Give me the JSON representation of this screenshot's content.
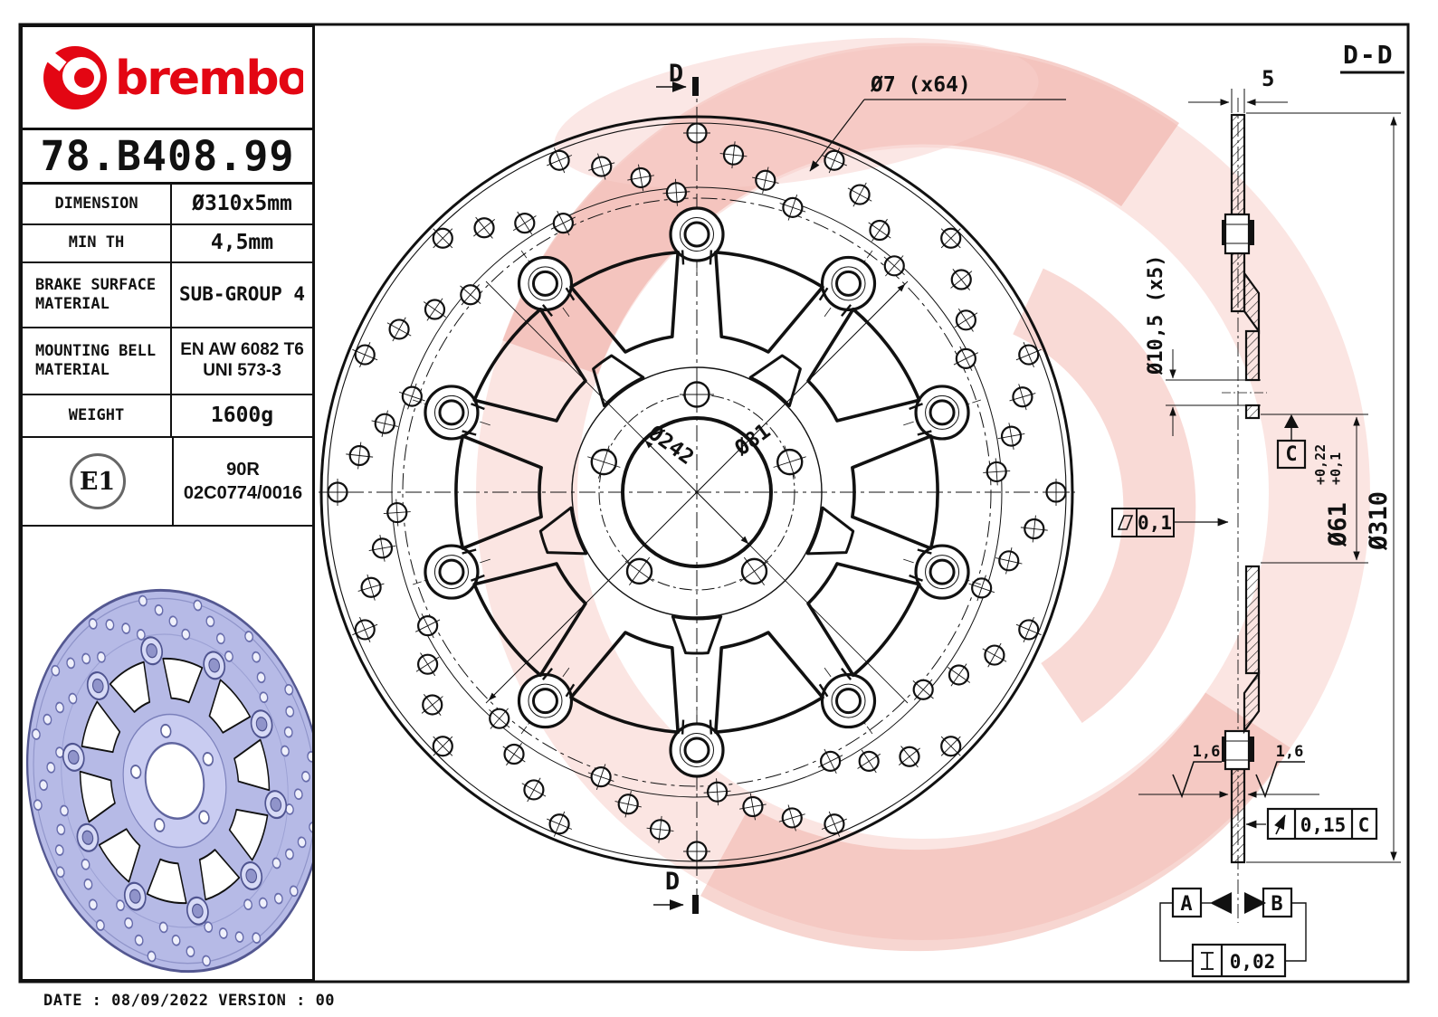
{
  "header": {
    "brand": "brembo",
    "part_number": "78.B408.99"
  },
  "spec_table": {
    "rows": [
      {
        "label": "DIMENSION",
        "value": "Ø310x5mm"
      },
      {
        "label": "MIN TH",
        "value": "4,5mm"
      },
      {
        "label": "BRAKE SURFACE",
        "label2": "MATERIAL",
        "value": "SUB-GROUP 4"
      },
      {
        "label": "MOUNTING BELL",
        "label2": "MATERIAL",
        "value": "EN AW 6082 T6",
        "value2": "UNI 573-3"
      },
      {
        "label": "WEIGHT",
        "value": "1600g"
      }
    ]
  },
  "homologation": {
    "mark": "E1",
    "line1": "90R",
    "line2": "02C0774/0016"
  },
  "front_view": {
    "cut_label_top": "D",
    "cut_label_bottom": "D",
    "holes_dim": "Ø7 (x64)",
    "pitch_dim": "Ø242",
    "bore_dim": "Ø81"
  },
  "section_view": {
    "title": "D-D",
    "thickness_dim": "5",
    "bell_holes_dim": "Ø10,5 (x5)",
    "bore_dim": "Ø61",
    "bore_tol_up": "+0,22",
    "bore_tol_low": "+0,1",
    "outer_dim": "Ø310",
    "flatness": "0,1",
    "datum_c": "C",
    "rough_left": "1,6",
    "rough_right": "1,6",
    "runout_val": "0,15",
    "runout_datum": "C",
    "datum_a": "A",
    "datum_b": "B",
    "parallel_val": "0,02"
  },
  "footer": {
    "text": "DATE : 08/09/2022 VERSION : 00"
  },
  "colors": {
    "brand_red": "#e30613",
    "watermark_pink": "#f2b3ab",
    "render_lavender": "#b6bae6",
    "line_black": "#111111"
  }
}
